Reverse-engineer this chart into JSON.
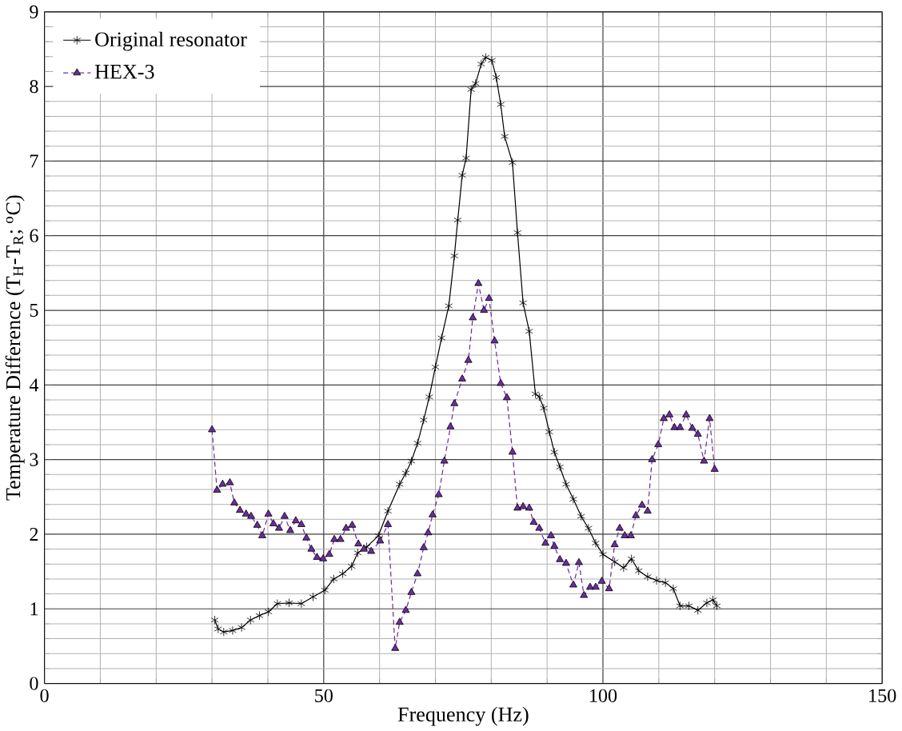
{
  "chart_data": {
    "type": "line",
    "xlabel": "Frequency (Hz)",
    "ylabel": "Temperature Difference (T$_{H}$-T$_{R}$; $^{o}$C)",
    "xlim": [
      0,
      150
    ],
    "ylim": [
      0,
      9
    ],
    "xticks": [
      0,
      50,
      100,
      150
    ],
    "yticks": [
      0,
      1,
      2,
      3,
      4,
      5,
      6,
      7,
      8,
      9
    ],
    "grid": true,
    "legend": "top left",
    "series": [
      {
        "name": "Original resonator",
        "color": "#000000",
        "marker": "cross",
        "line_style": "solid",
        "x": [
          30.5,
          31.1,
          32.1,
          33.7,
          35.3,
          36.9,
          38.5,
          40.1,
          41.7,
          43.8,
          46.0,
          48.1,
          50.2,
          51.8,
          53.4,
          55.0,
          56.1,
          57.7,
          59.8,
          61.5,
          63.6,
          64.7,
          65.7,
          66.8,
          67.9,
          68.9,
          70.0,
          71.1,
          72.4,
          73.4,
          74.0,
          74.8,
          75.5,
          76.4,
          77.2,
          78.2,
          79.0,
          80.1,
          80.9,
          81.7,
          82.4,
          83.8,
          84.7,
          85.7,
          86.8,
          87.9,
          88.6,
          89.4,
          90.4,
          91.3,
          92.3,
          93.4,
          94.7,
          96.1,
          97.4,
          98.7,
          100.0,
          102.1,
          103.7,
          105.1,
          106.4,
          108.0,
          109.6,
          111.2,
          112.6,
          113.8,
          115.4,
          117.0,
          118.6,
          119.7,
          120.4
        ],
        "values": [
          0.85,
          0.73,
          0.69,
          0.71,
          0.75,
          0.85,
          0.91,
          0.96,
          1.07,
          1.08,
          1.07,
          1.16,
          1.25,
          1.4,
          1.47,
          1.57,
          1.75,
          1.83,
          1.98,
          2.31,
          2.67,
          2.82,
          2.98,
          3.22,
          3.53,
          3.84,
          4.24,
          4.63,
          5.06,
          5.73,
          6.21,
          6.81,
          7.04,
          7.96,
          8.04,
          8.3,
          8.39,
          8.35,
          8.12,
          7.76,
          7.33,
          6.98,
          6.04,
          5.1,
          4.72,
          3.88,
          3.84,
          3.69,
          3.37,
          3.1,
          2.9,
          2.67,
          2.47,
          2.24,
          2.08,
          1.88,
          1.73,
          1.63,
          1.55,
          1.67,
          1.51,
          1.43,
          1.38,
          1.35,
          1.27,
          1.04,
          1.04,
          0.98,
          1.08,
          1.12,
          1.04
        ]
      },
      {
        "name": "HEX-3",
        "color": "#6a2c9e",
        "marker": "triangle",
        "line_style": "dashed",
        "x": [
          30.0,
          30.9,
          31.9,
          33.2,
          34.0,
          35.0,
          36.1,
          37.0,
          38.1,
          39.0,
          40.1,
          41.0,
          42.0,
          43.0,
          44.0,
          45.0,
          46.0,
          46.9,
          47.8,
          48.8,
          49.9,
          51.0,
          51.9,
          53.0,
          54.0,
          55.1,
          56.2,
          57.2,
          58.5,
          60.1,
          61.5,
          62.8,
          63.6,
          64.7,
          65.7,
          66.8,
          67.9,
          68.7,
          69.5,
          70.6,
          71.6,
          72.7,
          73.4,
          74.8,
          75.9,
          76.7,
          77.7,
          78.7,
          79.6,
          80.6,
          81.7,
          82.8,
          83.8,
          84.7,
          85.7,
          86.8,
          87.6,
          88.6,
          89.7,
          90.7,
          91.3,
          92.3,
          93.4,
          94.7,
          95.7,
          96.6,
          97.7,
          98.7,
          99.8,
          101.1,
          102.1,
          103.0,
          103.9,
          105.0,
          105.9,
          107.0,
          108.0,
          108.8,
          109.9,
          110.9,
          111.9,
          112.8,
          113.8,
          114.9,
          116.0,
          117.0,
          118.1,
          119.1,
          120.0
        ],
        "values": [
          3.4,
          2.59,
          2.67,
          2.69,
          2.42,
          2.32,
          2.27,
          2.24,
          2.12,
          1.98,
          2.27,
          2.14,
          2.08,
          2.24,
          2.05,
          2.18,
          2.13,
          1.95,
          1.8,
          1.69,
          1.67,
          1.73,
          1.93,
          1.93,
          2.08,
          2.12,
          1.87,
          1.8,
          1.77,
          1.91,
          2.13,
          0.47,
          0.82,
          0.98,
          1.22,
          1.47,
          1.82,
          2.02,
          2.26,
          2.53,
          2.98,
          3.44,
          3.75,
          4.08,
          4.33,
          4.9,
          5.36,
          5.0,
          5.16,
          4.59,
          4.02,
          3.83,
          3.1,
          2.35,
          2.37,
          2.35,
          2.16,
          2.08,
          1.88,
          1.98,
          1.84,
          1.66,
          1.61,
          1.32,
          1.62,
          1.18,
          1.29,
          1.29,
          1.37,
          1.27,
          1.86,
          2.08,
          1.98,
          1.98,
          2.25,
          2.39,
          2.31,
          3.0,
          3.2,
          3.55,
          3.6,
          3.43,
          3.43,
          3.6,
          3.42,
          3.34,
          2.98,
          3.55,
          2.87
        ]
      }
    ]
  }
}
